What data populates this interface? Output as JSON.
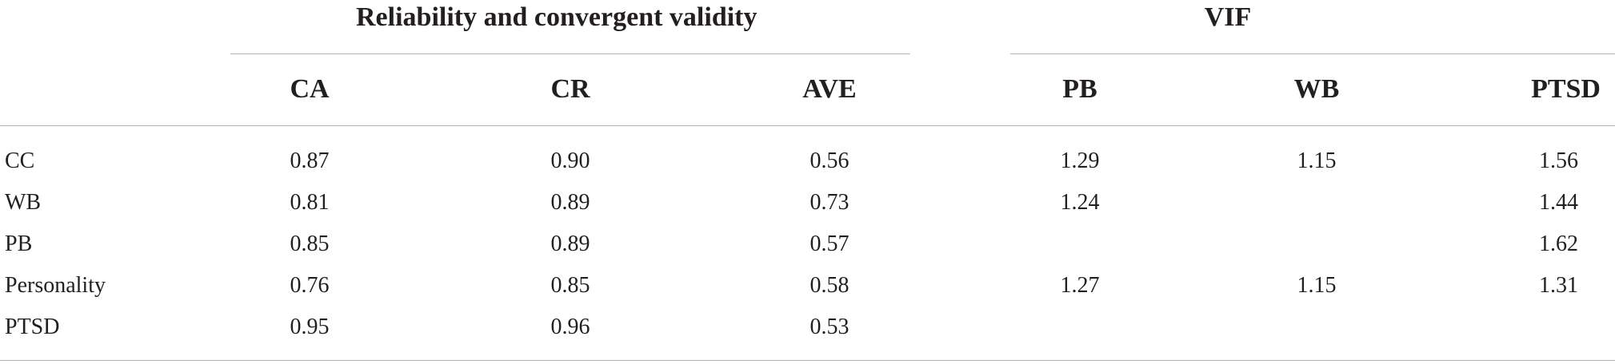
{
  "table": {
    "groups": {
      "reliability_title": "Reliability and convergent validity",
      "vif_title": "VIF"
    },
    "columns": [
      "CA",
      "CR",
      "AVE",
      "PB",
      "WB",
      "PTSD"
    ],
    "rows": [
      {
        "label": "CC",
        "ca": "0.87",
        "cr": "0.90",
        "ave": "0.56",
        "pb": "1.29",
        "wb": "1.15",
        "ptsd": "1.56"
      },
      {
        "label": "WB",
        "ca": "0.81",
        "cr": "0.89",
        "ave": "0.73",
        "pb": "1.24",
        "wb": "",
        "ptsd": "1.44"
      },
      {
        "label": "PB",
        "ca": "0.85",
        "cr": "0.89",
        "ave": "0.57",
        "pb": "",
        "wb": "",
        "ptsd": "1.62"
      },
      {
        "label": "Personality",
        "ca": "0.76",
        "cr": "0.85",
        "ave": "0.58",
        "pb": "1.27",
        "wb": "1.15",
        "ptsd": "1.31"
      },
      {
        "label": "PTSD",
        "ca": "0.95",
        "cr": "0.96",
        "ave": "0.53",
        "pb": "",
        "wb": "",
        "ptsd": ""
      }
    ]
  }
}
